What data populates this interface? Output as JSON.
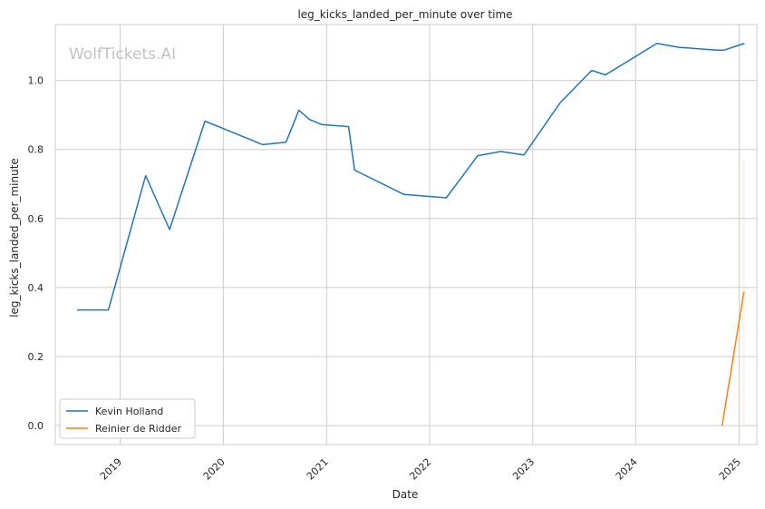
{
  "chart_data": {
    "type": "line",
    "title": "leg_kicks_landed_per_minute over time",
    "xlabel": "Date",
    "ylabel": "leg_kicks_landed_per_minute",
    "watermark": "WolfTickets.AI",
    "xlim": [
      "2018-05-16",
      "2025-03-05"
    ],
    "ylim": [
      -0.055,
      1.162
    ],
    "x_ticks": [
      "2019-01-01",
      "2020-01-01",
      "2021-01-01",
      "2022-01-01",
      "2023-01-01",
      "2024-01-01",
      "2025-01-01"
    ],
    "x_tick_labels": [
      "2019",
      "2020",
      "2021",
      "2022",
      "2023",
      "2024",
      "2025"
    ],
    "y_ticks": [
      0.0,
      0.2,
      0.4,
      0.6,
      0.8,
      1.0
    ],
    "y_tick_labels": [
      "0.0",
      "0.2",
      "0.4",
      "0.6",
      "0.8",
      "1.0"
    ],
    "grid": true,
    "legend_position": "lower-left",
    "series": [
      {
        "name": "Kevin Holland",
        "color": "#1f77b4",
        "points": [
          {
            "x": "2018-08-01",
            "y": 0.335
          },
          {
            "x": "2018-11-20",
            "y": 0.335
          },
          {
            "x": "2019-04-01",
            "y": 0.724
          },
          {
            "x": "2019-06-25",
            "y": 0.568
          },
          {
            "x": "2019-10-28",
            "y": 0.882
          },
          {
            "x": "2020-05-20",
            "y": 0.814
          },
          {
            "x": "2020-08-10",
            "y": 0.821
          },
          {
            "x": "2020-09-25",
            "y": 0.914
          },
          {
            "x": "2020-11-01",
            "y": 0.887
          },
          {
            "x": "2020-12-15",
            "y": 0.872
          },
          {
            "x": "2021-03-20",
            "y": 0.866
          },
          {
            "x": "2021-04-10",
            "y": 0.74
          },
          {
            "x": "2021-10-01",
            "y": 0.67
          },
          {
            "x": "2022-03-01",
            "y": 0.66
          },
          {
            "x": "2022-06-20",
            "y": 0.782
          },
          {
            "x": "2022-09-10",
            "y": 0.794
          },
          {
            "x": "2022-12-01",
            "y": 0.784
          },
          {
            "x": "2023-04-08",
            "y": 0.935
          },
          {
            "x": "2023-07-29",
            "y": 1.029
          },
          {
            "x": "2023-09-16",
            "y": 1.016
          },
          {
            "x": "2024-03-16",
            "y": 1.107
          },
          {
            "x": "2024-06-01",
            "y": 1.096
          },
          {
            "x": "2024-10-15",
            "y": 1.088
          },
          {
            "x": "2024-11-09",
            "y": 1.088
          },
          {
            "x": "2025-01-20",
            "y": 1.107
          }
        ]
      },
      {
        "name": "Reinier de Ridder",
        "color": "#ff7f0e",
        "points": [
          {
            "x": "2024-11-02",
            "y": 0.0
          },
          {
            "x": "2025-01-18",
            "y": 0.387
          }
        ]
      }
    ]
  }
}
